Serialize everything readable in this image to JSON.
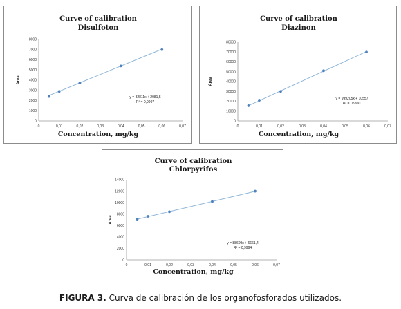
{
  "chart_data": [
    {
      "type": "scatter",
      "title": "Curve of calibration",
      "subtitle": "Disulfoton",
      "xlabel": "Concentration, mg/kg",
      "ylabel": "Area",
      "xlim": [
        0,
        0.07
      ],
      "ylim": [
        0,
        8000
      ],
      "x_ticks": [
        "0",
        "0,01",
        "0,02",
        "0,03",
        "0,04",
        "0,05",
        "0,06",
        "0,07"
      ],
      "y_ticks": [
        "0",
        "1000",
        "2000",
        "3000",
        "4000",
        "5000",
        "6000",
        "7000",
        "8000"
      ],
      "x": [
        0.005,
        0.01,
        0.02,
        0.04,
        0.06
      ],
      "y": [
        2400,
        2900,
        3720,
        5400,
        7000
      ],
      "trendline": {
        "slope": 82811,
        "intercept": 2081.5
      },
      "equation": "y = 82811x + 2081,5",
      "r2": "R² = 0,9997",
      "marker_color": "#4f81bd",
      "line_color": "#8eb6d8",
      "grid": false
    },
    {
      "type": "scatter",
      "title": "Curve of calibration",
      "subtitle": "Diazinon",
      "xlabel": "Concentration, mg/kg",
      "ylabel": "Area",
      "xlim": [
        0,
        0.07
      ],
      "ylim": [
        0,
        80000
      ],
      "x_ticks": [
        "0",
        "0,01",
        "0,02",
        "0,03",
        "0,04",
        "0,05",
        "0,06",
        "0,07"
      ],
      "y_ticks": [
        "0",
        "10000",
        "20000",
        "30000",
        "40000",
        "50000",
        "60000",
        "70000",
        "80000"
      ],
      "x": [
        0.005,
        0.01,
        0.02,
        0.04,
        0.06
      ],
      "y": [
        15500,
        21000,
        30000,
        51000,
        70000
      ],
      "trendline": {
        "slope": 999205,
        "intercept": 10557
      },
      "equation": "y = 999205x + 10557",
      "r2": "R² = 0,9991",
      "marker_color": "#4f81bd",
      "line_color": "#8eb6d8",
      "grid": false
    },
    {
      "type": "scatter",
      "title": "Curve of calibration",
      "subtitle": "Chlorpyrifos",
      "xlabel": "Concentration, mg/kg",
      "ylabel": "Area",
      "xlim": [
        0,
        0.07
      ],
      "ylim": [
        0,
        14000
      ],
      "x_ticks": [
        "0",
        "0,01",
        "0,02",
        "0,03",
        "0,04",
        "0,05",
        "0,06",
        "0,07"
      ],
      "y_ticks": [
        "0",
        "2000",
        "4000",
        "6000",
        "8000",
        "10000",
        "12000",
        "14000"
      ],
      "x": [
        0.005,
        0.01,
        0.02,
        0.04,
        0.06
      ],
      "y": [
        7100,
        7600,
        8400,
        10200,
        12000
      ],
      "trendline": {
        "slope": 88609,
        "intercept": 6661.4
      },
      "equation": "y = 88609x + 6661,4",
      "r2": "R² = 0,9994",
      "marker_color": "#4f81bd",
      "line_color": "#8eb6d8",
      "grid": false
    }
  ],
  "caption": {
    "label": "FIGURA 3.",
    "text": " Curva de calibración de los organofosforados utilizados."
  }
}
